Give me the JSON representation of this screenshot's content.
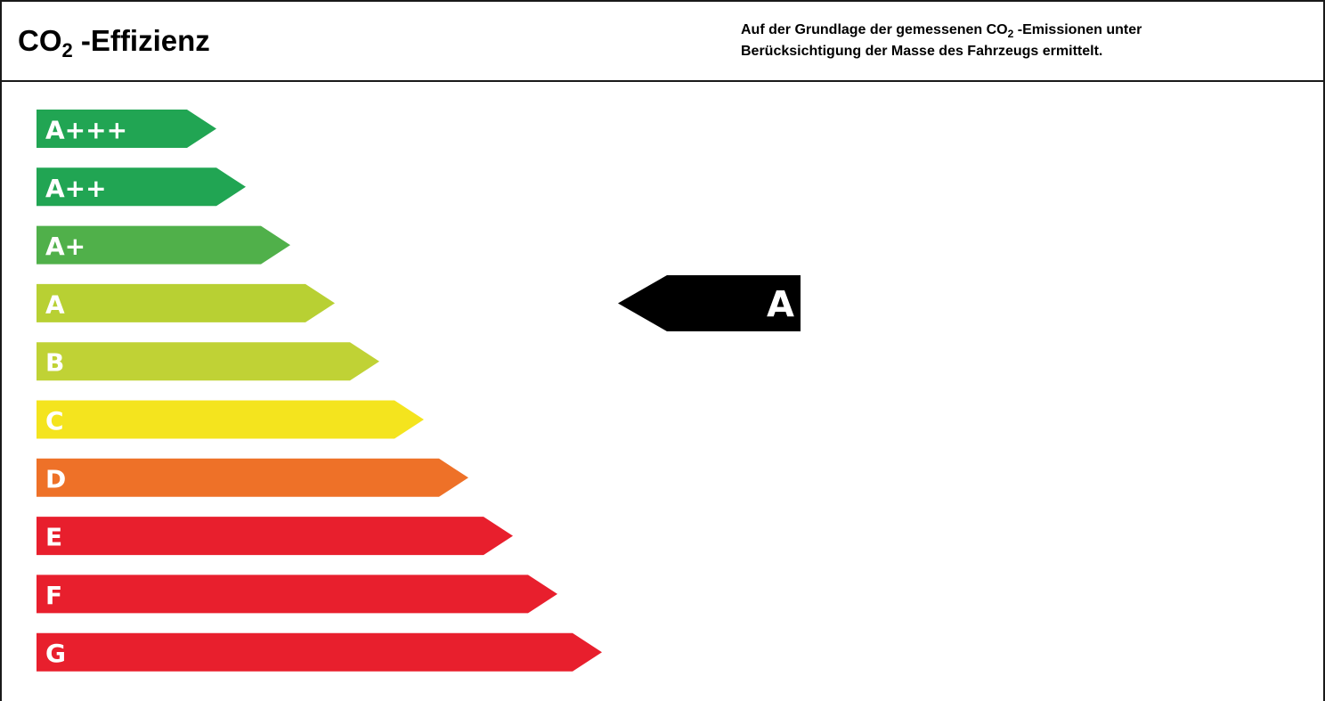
{
  "header": {
    "title_main": "CO",
    "title_sub": "2",
    "title_rest": " -Effizienz",
    "desc_line1_a": "Auf der Grundlage der gemessenen CO",
    "desc_line1_sub": "2",
    "desc_line1_b": " -Emissionen unter",
    "desc_line2": "Berücksichtigung der Masse des Fahrzeugs ermittelt."
  },
  "scale": {
    "classes": [
      {
        "label": "A+++",
        "color": "#21a553"
      },
      {
        "label": "A++",
        "color": "#21a553"
      },
      {
        "label": "A+",
        "color": "#50b04a"
      },
      {
        "label": "A",
        "color": "#b8d033"
      },
      {
        "label": "B",
        "color": "#c0d235"
      },
      {
        "label": "C",
        "color": "#f4e41e"
      },
      {
        "label": "D",
        "color": "#ee7128"
      },
      {
        "label": "E",
        "color": "#e81f2d"
      },
      {
        "label": "F",
        "color": "#e81f2d"
      },
      {
        "label": "G",
        "color": "#e81f2d"
      }
    ]
  },
  "rating": {
    "label": "A",
    "color": "#000000"
  }
}
